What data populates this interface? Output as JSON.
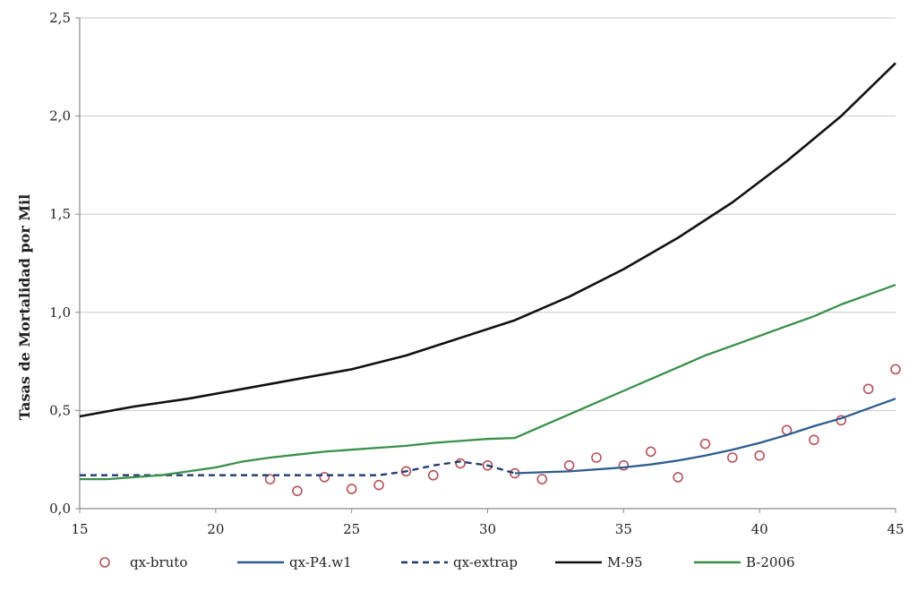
{
  "chart_data": {
    "type": "line",
    "title": "",
    "xlabel": "",
    "ylabel": "Tasas de Mortalidad por Mil",
    "xlim": [
      15,
      45
    ],
    "ylim": [
      0,
      2.5
    ],
    "x_ticks": [
      15,
      20,
      25,
      30,
      35,
      40,
      45
    ],
    "x_tick_labels": [
      "15",
      "20",
      "25",
      "30",
      "35",
      "40",
      "45"
    ],
    "y_ticks": [
      0,
      0.5,
      1.0,
      1.5,
      2.0,
      2.5
    ],
    "y_tick_labels": [
      "0,0",
      "0,5",
      "1,0",
      "1,5",
      "2,0",
      "2,5"
    ],
    "grid": "horizontal",
    "legend_position": "bottom",
    "series": [
      {
        "name": "qx-bruto",
        "style": "markers",
        "color": "#b5525c",
        "x": [
          22,
          23,
          24,
          25,
          26,
          27,
          28,
          29,
          30,
          31,
          32,
          33,
          34,
          35,
          36,
          37,
          38,
          39,
          40,
          41,
          42,
          43,
          44,
          45
        ],
        "y": [
          0.15,
          0.09,
          0.16,
          0.1,
          0.12,
          0.19,
          0.17,
          0.23,
          0.22,
          0.18,
          0.15,
          0.22,
          0.26,
          0.22,
          0.29,
          0.16,
          0.33,
          0.26,
          0.27,
          0.4,
          0.35,
          0.45,
          0.61,
          0.71
        ]
      },
      {
        "name": "qx-P4.w1",
        "style": "solid",
        "color": "#2f5d8f",
        "x": [
          31,
          32,
          33,
          34,
          35,
          36,
          37,
          38,
          39,
          40,
          41,
          42,
          43,
          44,
          45
        ],
        "y": [
          0.18,
          0.185,
          0.19,
          0.2,
          0.21,
          0.225,
          0.245,
          0.27,
          0.3,
          0.335,
          0.375,
          0.42,
          0.46,
          0.51,
          0.56
        ]
      },
      {
        "name": "qx-extrap",
        "style": "dashed",
        "color": "#1f3a6b",
        "x": [
          15,
          16,
          17,
          18,
          19,
          20,
          21,
          22,
          23,
          24,
          25,
          26,
          27,
          28,
          29,
          30,
          31
        ],
        "y": [
          0.17,
          0.17,
          0.17,
          0.17,
          0.17,
          0.17,
          0.17,
          0.17,
          0.17,
          0.17,
          0.17,
          0.17,
          0.19,
          0.22,
          0.24,
          0.22,
          0.18
        ]
      },
      {
        "name": "M-95",
        "style": "solid",
        "color": "#111111",
        "x": [
          15,
          17,
          19,
          21,
          23,
          25,
          27,
          29,
          31,
          33,
          35,
          37,
          39,
          41,
          43,
          45
        ],
        "y": [
          0.47,
          0.52,
          0.56,
          0.61,
          0.66,
          0.71,
          0.78,
          0.87,
          0.96,
          1.08,
          1.22,
          1.38,
          1.56,
          1.77,
          2.0,
          2.27
        ]
      },
      {
        "name": "B-2006",
        "style": "solid",
        "color": "#3a8f4a",
        "x": [
          15,
          16,
          17,
          18,
          19,
          20,
          21,
          22,
          23,
          24,
          25,
          26,
          27,
          28,
          29,
          30,
          31,
          32,
          33,
          34,
          35,
          36,
          37,
          38,
          39,
          40,
          41,
          42,
          43,
          44,
          45
        ],
        "y": [
          0.15,
          0.15,
          0.16,
          0.17,
          0.19,
          0.21,
          0.24,
          0.26,
          0.275,
          0.29,
          0.3,
          0.31,
          0.32,
          0.335,
          0.345,
          0.355,
          0.36,
          0.42,
          0.48,
          0.54,
          0.6,
          0.66,
          0.72,
          0.78,
          0.83,
          0.88,
          0.93,
          0.98,
          1.04,
          1.09,
          1.14
        ]
      }
    ]
  }
}
